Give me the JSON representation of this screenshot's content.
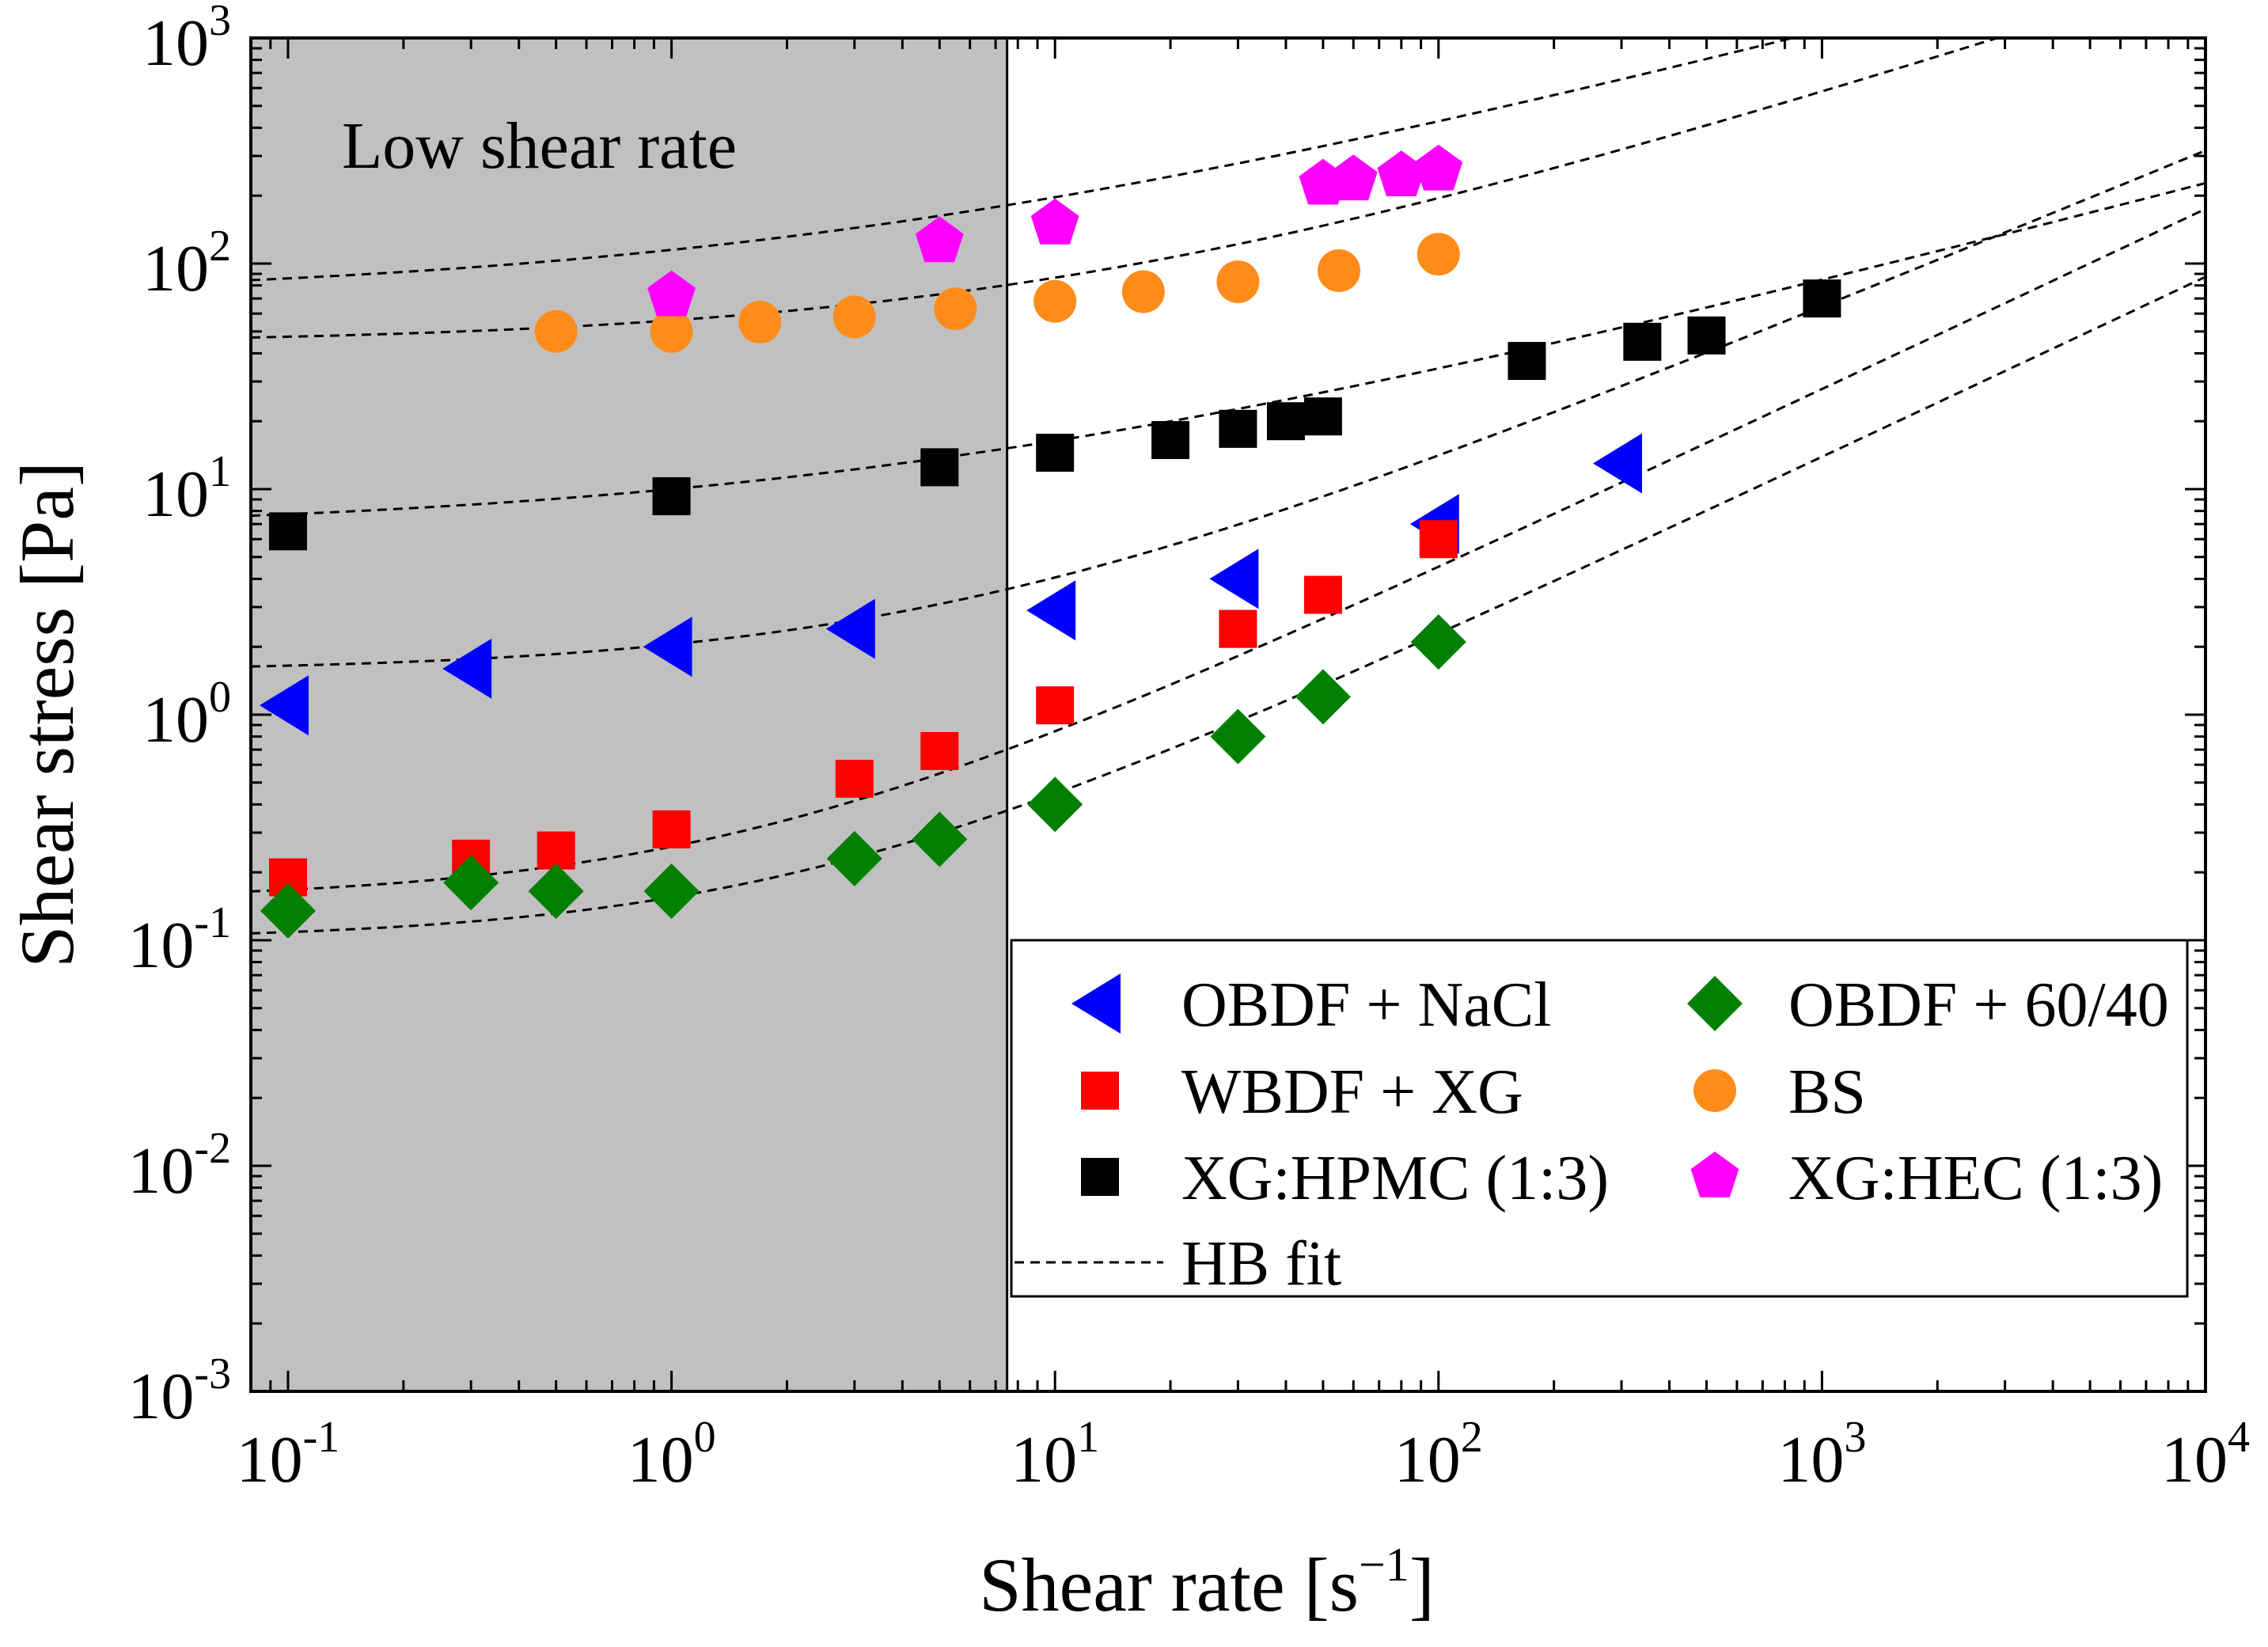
{
  "chart_data": {
    "type": "scatter",
    "xscale": "log",
    "yscale": "log",
    "xlim": [
      0.08,
      10000
    ],
    "ylim": [
      0.001,
      1000
    ],
    "xlabel_main": "Shear rate [s",
    "xlabel_sup": "−1",
    "xlabel_end": "]",
    "ylabel": "Shear stress [Pa]",
    "annotation": "Low shear rate",
    "shaded_region": {
      "x_from": 0.08,
      "x_to": 7.5,
      "color": "#c0c0c0"
    },
    "x_ticks": [
      {
        "value": 0.1,
        "base": "10",
        "exp": "-1"
      },
      {
        "value": 1,
        "base": "10",
        "exp": "0"
      },
      {
        "value": 10,
        "base": "10",
        "exp": "1"
      },
      {
        "value": 100,
        "base": "10",
        "exp": "2"
      },
      {
        "value": 1000,
        "base": "10",
        "exp": "3"
      },
      {
        "value": 10000,
        "base": "10",
        "exp": "4"
      }
    ],
    "y_ticks": [
      {
        "value": 0.001,
        "base": "10",
        "exp": "-3"
      },
      {
        "value": 0.01,
        "base": "10",
        "exp": "-2"
      },
      {
        "value": 0.1,
        "base": "10",
        "exp": "-1"
      },
      {
        "value": 1,
        "base": "10",
        "exp": "0"
      },
      {
        "value": 10,
        "base": "10",
        "exp": "1"
      },
      {
        "value": 100,
        "base": "10",
        "exp": "2"
      },
      {
        "value": 1000,
        "base": "10",
        "exp": "3"
      }
    ],
    "series": [
      {
        "name": "OBDF + NaCl",
        "marker": "triangle-left",
        "color": "#0000ff",
        "x": [
          0.1,
          0.3,
          1,
          3,
          10,
          30,
          100,
          300
        ],
        "y": [
          1.1,
          1.6,
          2.0,
          2.4,
          2.9,
          4.0,
          7.0,
          13
        ]
      },
      {
        "name": "WBDF + XG",
        "marker": "square",
        "color": "#ff0000",
        "x": [
          0.1,
          0.3,
          0.5,
          1,
          3,
          5,
          10,
          30,
          50,
          100
        ],
        "y": [
          0.19,
          0.23,
          0.25,
          0.31,
          0.52,
          0.69,
          1.1,
          2.4,
          3.4,
          6.0
        ]
      },
      {
        "name": "XG:HPMC (1:3)",
        "marker": "square",
        "color": "#000000",
        "x": [
          0.1,
          1,
          5,
          10,
          20,
          30,
          40,
          50,
          170,
          340,
          500,
          1000
        ],
        "y": [
          6.5,
          9.3,
          12.5,
          14.5,
          16.5,
          18.5,
          20,
          21,
          37,
          45,
          48,
          70
        ]
      },
      {
        "name": "OBDF + 60/40",
        "marker": "diamond",
        "color": "#007f00",
        "x": [
          0.1,
          0.3,
          0.5,
          1,
          3,
          5,
          10,
          30,
          50,
          100
        ],
        "y": [
          0.135,
          0.18,
          0.165,
          0.165,
          0.23,
          0.28,
          0.4,
          0.8,
          1.2,
          2.1
        ]
      },
      {
        "name": "BS",
        "marker": "circle",
        "color": "#ff8c1a",
        "x": [
          0.5,
          1,
          1.7,
          3,
          5.5,
          10,
          17,
          30,
          55,
          100
        ],
        "y": [
          50,
          50,
          55,
          58,
          63,
          68,
          75,
          83,
          93,
          110
        ]
      },
      {
        "name": "XG:HEC (1:3)",
        "marker": "pentagon",
        "color": "#ff00ff",
        "x": [
          1,
          5,
          10,
          50,
          60,
          80,
          100
        ],
        "y": [
          72,
          125,
          150,
          225,
          235,
          245,
          260
        ]
      }
    ],
    "fit_curves": [
      {
        "name": "HB fit",
        "tau0": 70,
        "K": 45,
        "n": 0.45
      },
      {
        "name": "HB fit",
        "tau0": 44,
        "K": 12,
        "n": 0.55
      },
      {
        "name": "HB fit",
        "tau0": 6.5,
        "K": 3.5,
        "n": 0.45
      },
      {
        "name": "HB fit",
        "tau0": 1.55,
        "K": 0.5,
        "n": 0.7
      },
      {
        "name": "HB fit",
        "tau0": 0.15,
        "K": 0.11,
        "n": 0.8
      },
      {
        "name": "HB fit",
        "tau0": 0.1,
        "K": 0.055,
        "n": 0.8
      }
    ],
    "legend": {
      "placement": "bottom-right",
      "entries": [
        {
          "label": "OBDF + NaCl",
          "marker": "triangle-left",
          "color": "#0000ff"
        },
        {
          "label": "OBDF + 60/40",
          "marker": "diamond",
          "color": "#007f00"
        },
        {
          "label": "WBDF + XG",
          "marker": "square",
          "color": "#ff0000"
        },
        {
          "label": "BS",
          "marker": "circle",
          "color": "#ff8c1a"
        },
        {
          "label": "XG:HPMC (1:3)",
          "marker": "square",
          "color": "#000000"
        },
        {
          "label": "XG:HEC (1:3)",
          "marker": "pentagon",
          "color": "#ff00ff"
        },
        {
          "label": "HB fit",
          "marker": "dashed-line",
          "color": "#000000"
        }
      ]
    }
  }
}
